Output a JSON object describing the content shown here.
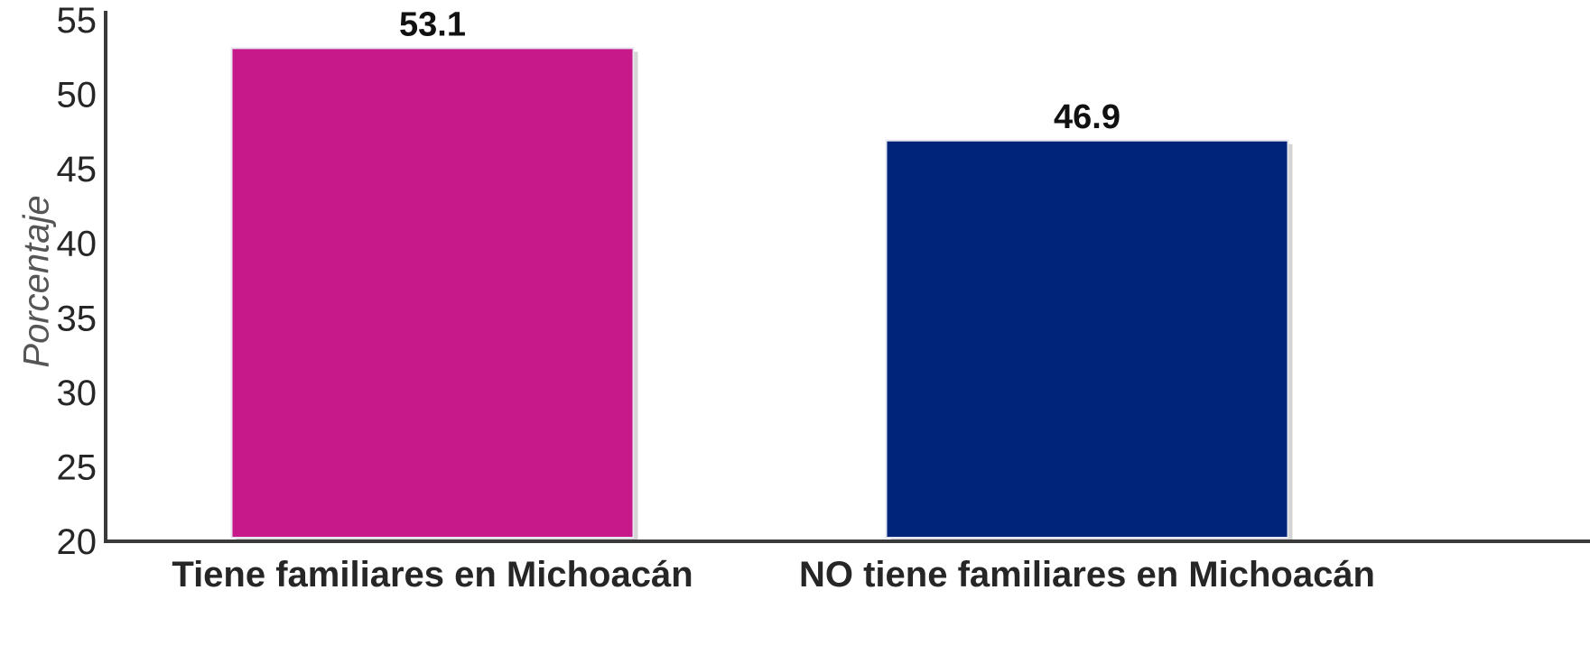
{
  "chart_data": {
    "type": "bar",
    "title": "",
    "xlabel": "",
    "ylabel": "Porcentaje",
    "categories": [
      "Tiene familiares en Michoacán",
      "NO tiene familiares en Michoacán"
    ],
    "values": [
      53.1,
      46.9
    ],
    "value_labels": [
      "53.1",
      "46.9"
    ],
    "colors": [
      "#c8198a",
      "#00247a"
    ],
    "ylim": [
      20,
      55
    ],
    "yticks": [
      20,
      25,
      30,
      35,
      40,
      45,
      50,
      55
    ],
    "grid": false,
    "legend": "none"
  }
}
